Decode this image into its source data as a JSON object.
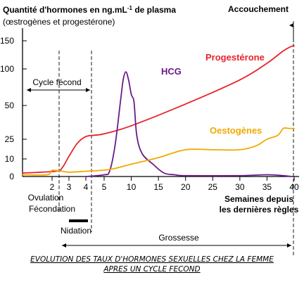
{
  "chart_data": {
    "type": "line",
    "title": "Quantité d'hormones en ng.mL-1 de plasma",
    "title_parts": {
      "main": "Quantité d'hormones en ng.mL",
      "sup": "-1",
      "tail": " de plasma"
    },
    "subtitle": "(œstrogènes et progestérone)",
    "xlabel": "Semaines depuis les dernières règles",
    "xlabel_lines": [
      "Semaines depuis",
      "les dernières règles"
    ],
    "x_ticks": [
      2,
      3,
      4,
      5,
      10,
      15,
      20,
      25,
      30,
      35,
      40
    ],
    "y_ticks": [
      0,
      10,
      25,
      50,
      100,
      150
    ],
    "y_tick_labels": [
      "0",
      "10",
      "25",
      "50",
      "100",
      "150"
    ],
    "y_scale": "non-linear",
    "series": [
      {
        "name": "Progestérone",
        "color": "#e8232a",
        "points": [
          [
            -1,
            2
          ],
          [
            2.2,
            3
          ],
          [
            2.6,
            5
          ],
          [
            3,
            12
          ],
          [
            3.5,
            22
          ],
          [
            4,
            27
          ],
          [
            4.5,
            28
          ],
          [
            5,
            29
          ],
          [
            10,
            35
          ],
          [
            20,
            52
          ],
          [
            30,
            85
          ],
          [
            35,
            110
          ],
          [
            38,
            132
          ],
          [
            39.5,
            140
          ],
          [
            40,
            141
          ]
        ]
      },
      {
        "name": "HCG",
        "color": "#6a1b8a",
        "points": [
          [
            4,
            0
          ],
          [
            5,
            1
          ],
          [
            6,
            3
          ],
          [
            7,
            20
          ],
          [
            8,
            55
          ],
          [
            8.5,
            85
          ],
          [
            9,
            96
          ],
          [
            9.5,
            85
          ],
          [
            10,
            65
          ],
          [
            10.5,
            55
          ],
          [
            11,
            28
          ],
          [
            12,
            14
          ],
          [
            14,
            7
          ],
          [
            16,
            2
          ],
          [
            18,
            1
          ],
          [
            20,
            0.5
          ],
          [
            30,
            0.5
          ],
          [
            35,
            1
          ],
          [
            38,
            0.5
          ],
          [
            39.5,
            0
          ]
        ]
      },
      {
        "name": "Oestogènes",
        "color": "#f2a900",
        "points": [
          [
            -1,
            1
          ],
          [
            1.5,
            1
          ],
          [
            2,
            3.5
          ],
          [
            2.6,
            3
          ],
          [
            3,
            2.5
          ],
          [
            4,
            3
          ],
          [
            6,
            4
          ],
          [
            10,
            7
          ],
          [
            15,
            11
          ],
          [
            20,
            17
          ],
          [
            25,
            17
          ],
          [
            30,
            17
          ],
          [
            33,
            20
          ],
          [
            35,
            25
          ],
          [
            37,
            28
          ],
          [
            38,
            33
          ],
          [
            39,
            33
          ],
          [
            40,
            33
          ]
        ]
      }
    ],
    "annotations": {
      "accouchement": "Accouchement",
      "cycle_fecond": "Cycle fécond",
      "ovulation": "Ovulation",
      "fecondation": "Fécondation",
      "nidation": "Nidation",
      "grossesse": "Grossesse"
    },
    "caption_lines": [
      "EVOLUTION DES TAUX D'HORMONES SEXUELLES CHEZ LA FEMME",
      "APRES UN CYCLE FECOND"
    ]
  }
}
